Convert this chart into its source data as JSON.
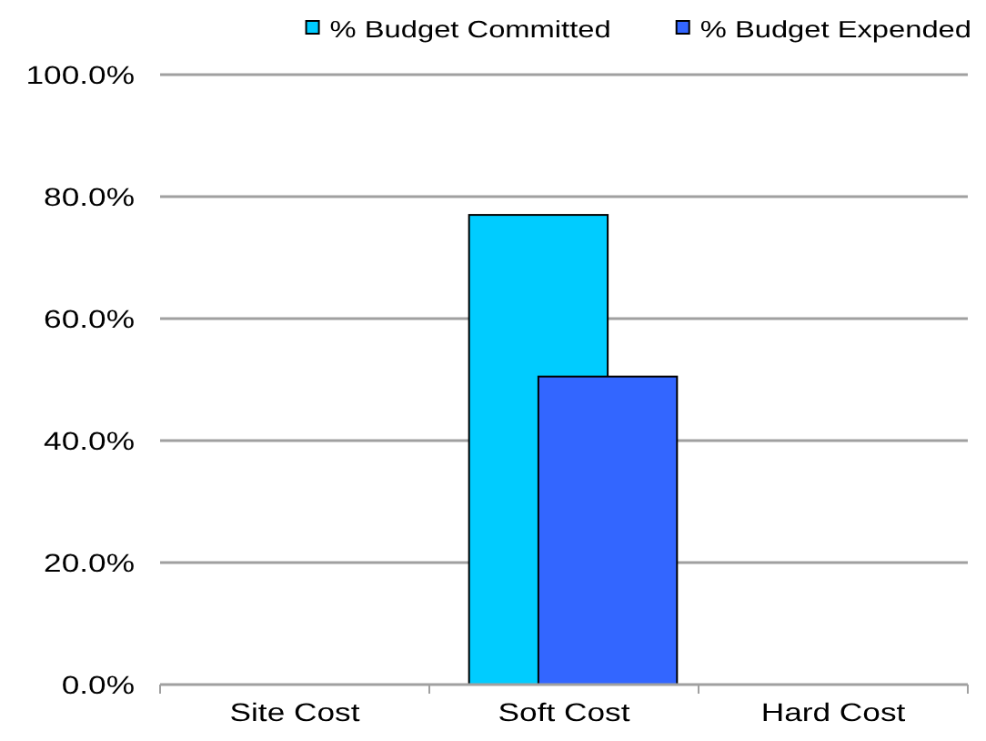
{
  "chart_data": {
    "type": "bar",
    "categories": [
      "Site Cost",
      "Soft Cost",
      "Hard Cost"
    ],
    "series": [
      {
        "name": "% Budget Committed",
        "color": "#00ccff",
        "values": [
          null,
          77,
          null
        ]
      },
      {
        "name": "% Budget Expended",
        "color": "#3366ff",
        "values": [
          null,
          50.5,
          null
        ]
      }
    ],
    "ylim": [
      0,
      100
    ],
    "yticks": [
      {
        "value": 0,
        "label": "0.0%"
      },
      {
        "value": 20,
        "label": "20.0%"
      },
      {
        "value": 40,
        "label": "40.0%"
      },
      {
        "value": 60,
        "label": "60.0%"
      },
      {
        "value": 80,
        "label": "80.0%"
      },
      {
        "value": 100,
        "label": "100.0%"
      }
    ],
    "grid": "y",
    "legend": "top right"
  }
}
